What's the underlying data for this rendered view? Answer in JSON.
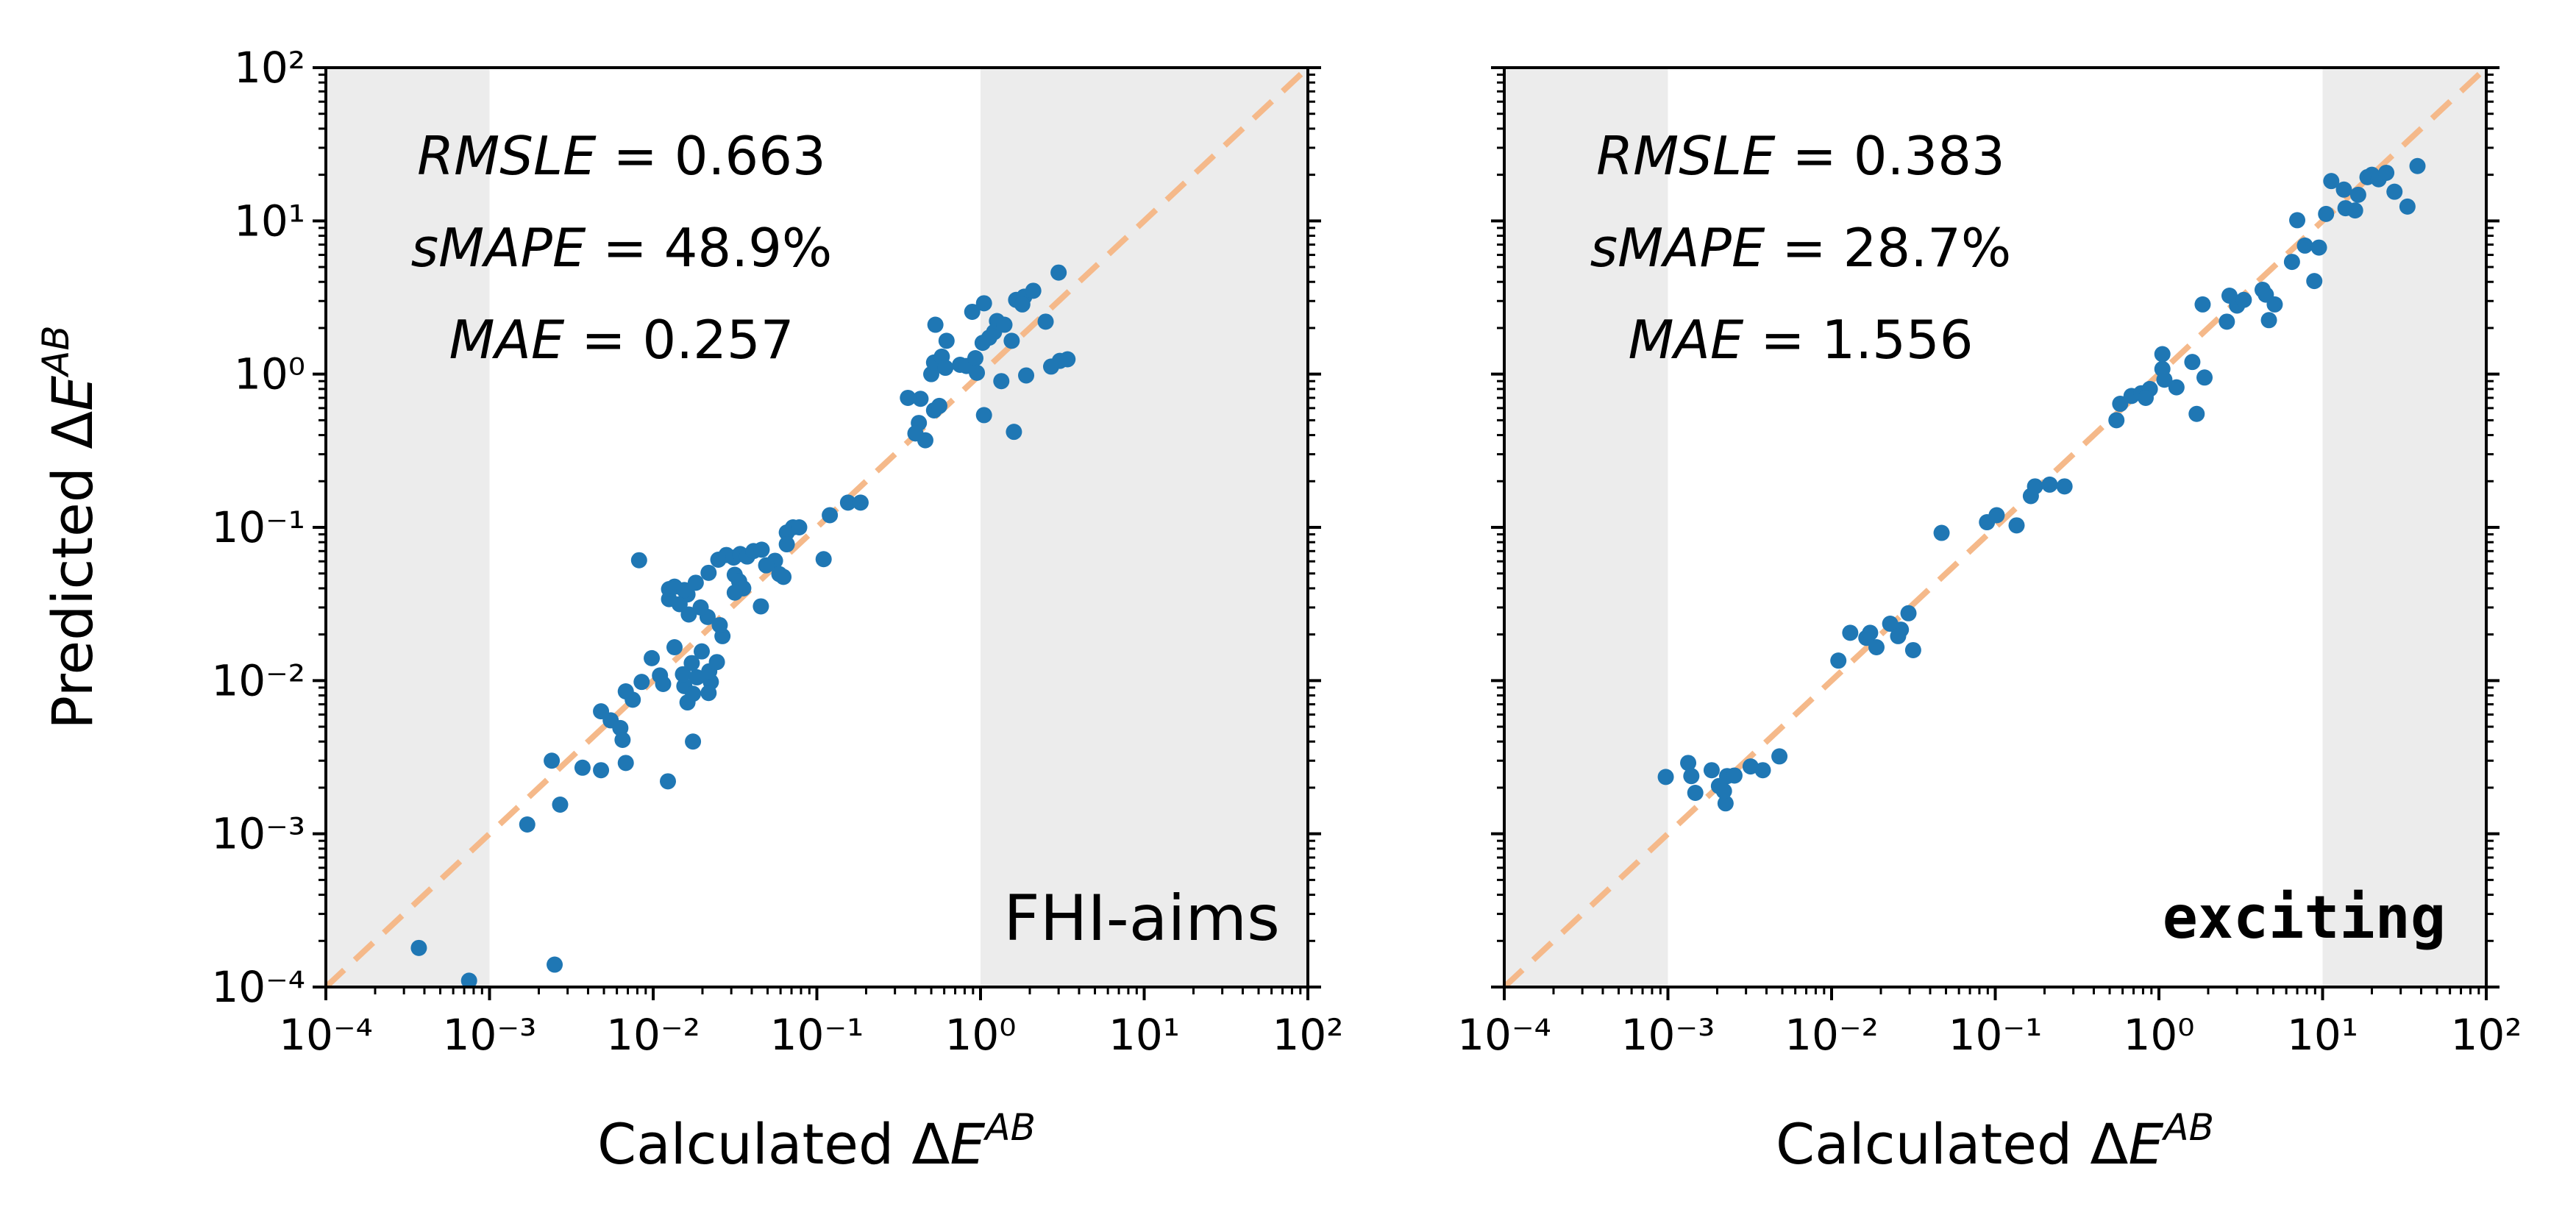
{
  "figure": {
    "ylabel": "Predicted ΔEᴬᴮ"
  },
  "colors": {
    "points": "#1f77b4",
    "diagonal": "#f5b98a",
    "shade": "#ececec",
    "axes": "#000000"
  },
  "chart_data": [
    {
      "type": "scatter",
      "title": "",
      "code_label": "FHI-aims",
      "xlabel": "Calculated ΔEᴬᴮ",
      "ylabel": "Predicted ΔEᴬᴮ",
      "xscale": "log",
      "yscale": "log",
      "xlim": [
        0.0001,
        100
      ],
      "ylim": [
        0.0001,
        100
      ],
      "tick_labels": [
        "10⁻⁴",
        "10⁻³",
        "10⁻²",
        "10⁻¹",
        "10⁰",
        "10¹",
        "10²"
      ],
      "shaded_x_ranges": [
        [
          0.0001,
          0.001
        ],
        [
          1,
          100
        ]
      ],
      "diagonal": "y = x (dashed)",
      "metrics": [
        {
          "name": "RMSLE",
          "value": "0.663"
        },
        {
          "name": "sMAPE",
          "value": "48.9%"
        },
        {
          "name": "MAE",
          "value": "0.257"
        }
      ],
      "points": [
        [
          0.00037,
          0.00018
        ],
        [
          0.00075,
          0.00011
        ],
        [
          0.0025,
          0.00014
        ],
        [
          0.0017,
          0.00115
        ],
        [
          0.0027,
          0.00155
        ],
        [
          0.0024,
          0.003
        ],
        [
          0.0037,
          0.0027
        ],
        [
          0.0048,
          0.0026
        ],
        [
          0.0068,
          0.0029
        ],
        [
          0.0055,
          0.0055
        ],
        [
          0.0063,
          0.0049
        ],
        [
          0.0065,
          0.0041
        ],
        [
          0.0048,
          0.0063
        ],
        [
          0.0075,
          0.0075
        ],
        [
          0.0068,
          0.0085
        ],
        [
          0.0085,
          0.0098
        ],
        [
          0.0098,
          0.014
        ],
        [
          0.011,
          0.0108
        ],
        [
          0.0115,
          0.0095
        ],
        [
          0.0123,
          0.0022
        ],
        [
          0.0155,
          0.0092
        ],
        [
          0.0152,
          0.011
        ],
        [
          0.0172,
          0.013
        ],
        [
          0.0185,
          0.0105
        ],
        [
          0.0175,
          0.0082
        ],
        [
          0.0162,
          0.0072
        ],
        [
          0.0175,
          0.004
        ],
        [
          0.0135,
          0.0165
        ],
        [
          0.0198,
          0.0155
        ],
        [
          0.0225,
          0.0098
        ],
        [
          0.0218,
          0.0083
        ],
        [
          0.022,
          0.0115
        ],
        [
          0.0245,
          0.0132
        ],
        [
          0.0265,
          0.0195
        ],
        [
          0.0255,
          0.023
        ],
        [
          0.0215,
          0.026
        ],
        [
          0.0195,
          0.03
        ],
        [
          0.0165,
          0.027
        ],
        [
          0.0145,
          0.0315
        ],
        [
          0.0162,
          0.0365
        ],
        [
          0.0125,
          0.034
        ],
        [
          0.0125,
          0.0395
        ],
        [
          0.0135,
          0.041
        ],
        [
          0.0155,
          0.039
        ],
        [
          0.0182,
          0.0435
        ],
        [
          0.0218,
          0.0505
        ],
        [
          0.025,
          0.0615
        ],
        [
          0.028,
          0.066
        ],
        [
          0.031,
          0.0635
        ],
        [
          0.034,
          0.067
        ],
        [
          0.0375,
          0.0645
        ],
        [
          0.041,
          0.07
        ],
        [
          0.046,
          0.0715
        ],
        [
          0.0315,
          0.049
        ],
        [
          0.0335,
          0.0445
        ],
        [
          0.0355,
          0.04
        ],
        [
          0.0315,
          0.0375
        ],
        [
          0.0455,
          0.0305
        ],
        [
          0.0555,
          0.0605
        ],
        [
          0.0655,
          0.0925
        ],
        [
          0.0715,
          0.1
        ],
        [
          0.078,
          0.1
        ],
        [
          0.0655,
          0.0775
        ],
        [
          0.059,
          0.0495
        ],
        [
          0.0625,
          0.0475
        ],
        [
          0.049,
          0.0565
        ],
        [
          0.11,
          0.062
        ],
        [
          0.12,
          0.12
        ],
        [
          0.155,
          0.145
        ],
        [
          0.185,
          0.145
        ],
        [
          0.0082,
          0.061
        ],
        [
          0.42,
          0.48
        ],
        [
          0.46,
          0.37
        ],
        [
          0.43,
          0.69
        ],
        [
          0.5,
          1.0
        ],
        [
          0.52,
          0.58
        ],
        [
          0.56,
          0.62
        ],
        [
          0.52,
          1.19
        ],
        [
          0.53,
          2.1
        ],
        [
          0.62,
          1.65
        ],
        [
          0.58,
          1.3
        ],
        [
          0.61,
          1.1
        ],
        [
          0.75,
          1.15
        ],
        [
          0.82,
          1.13
        ],
        [
          0.93,
          1.27
        ],
        [
          0.89,
          2.55
        ],
        [
          1.05,
          2.9
        ],
        [
          1.03,
          1.6
        ],
        [
          1.13,
          1.73
        ],
        [
          1.21,
          1.88
        ],
        [
          1.26,
          2.22
        ],
        [
          1.4,
          2.1
        ],
        [
          1.55,
          1.65
        ],
        [
          1.65,
          3.05
        ],
        [
          1.85,
          3.2
        ],
        [
          2.1,
          3.5
        ],
        [
          1.8,
          2.85
        ],
        [
          1.05,
          0.54
        ],
        [
          0.95,
          1.02
        ],
        [
          1.34,
          0.9
        ],
        [
          1.6,
          0.42
        ],
        [
          1.9,
          0.98
        ],
        [
          2.5,
          2.2
        ],
        [
          3.0,
          4.6
        ],
        [
          3.05,
          1.22
        ],
        [
          3.4,
          1.25
        ],
        [
          2.7,
          1.12
        ],
        [
          0.36,
          0.7
        ],
        [
          0.4,
          0.41
        ]
      ]
    },
    {
      "type": "scatter",
      "title": "",
      "code_label": "exciting",
      "xlabel": "Calculated ΔEᴬᴮ",
      "ylabel": "",
      "xscale": "log",
      "yscale": "log",
      "xlim": [
        0.0001,
        100
      ],
      "ylim": [
        0.0001,
        100
      ],
      "tick_labels": [
        "10⁻⁴",
        "10⁻³",
        "10⁻²",
        "10⁻¹",
        "10⁰",
        "10¹",
        "10²"
      ],
      "shaded_x_ranges": [
        [
          0.0001,
          0.001
        ],
        [
          10,
          100
        ]
      ],
      "diagonal": "y = x (dashed)",
      "metrics": [
        {
          "name": "RMSLE",
          "value": "0.383"
        },
        {
          "name": "sMAPE",
          "value": "28.7%"
        },
        {
          "name": "MAE",
          "value": "1.556"
        }
      ],
      "points": [
        [
          0.00097,
          0.00235
        ],
        [
          0.00133,
          0.0029
        ],
        [
          0.00139,
          0.00238
        ],
        [
          0.00147,
          0.00185
        ],
        [
          0.00185,
          0.0026
        ],
        [
          0.00205,
          0.00205
        ],
        [
          0.00225,
          0.00158
        ],
        [
          0.0023,
          0.00238
        ],
        [
          0.00255,
          0.0024
        ],
        [
          0.0032,
          0.00275
        ],
        [
          0.0038,
          0.0026
        ],
        [
          0.0048,
          0.0032
        ],
        [
          0.0022,
          0.0019
        ],
        [
          0.011,
          0.0135
        ],
        [
          0.013,
          0.0205
        ],
        [
          0.0163,
          0.019
        ],
        [
          0.0188,
          0.0165
        ],
        [
          0.0228,
          0.0235
        ],
        [
          0.0265,
          0.0215
        ],
        [
          0.0295,
          0.0275
        ],
        [
          0.0315,
          0.0158
        ],
        [
          0.0172,
          0.0205
        ],
        [
          0.0255,
          0.0195
        ],
        [
          0.047,
          0.092
        ],
        [
          0.089,
          0.108
        ],
        [
          0.102,
          0.12
        ],
        [
          0.135,
          0.103
        ],
        [
          0.165,
          0.16
        ],
        [
          0.175,
          0.185
        ],
        [
          0.215,
          0.19
        ],
        [
          0.265,
          0.185
        ],
        [
          0.55,
          0.5
        ],
        [
          0.58,
          0.64
        ],
        [
          0.68,
          0.72
        ],
        [
          0.78,
          0.75
        ],
        [
          0.88,
          0.8
        ],
        [
          0.83,
          0.7
        ],
        [
          1.08,
          0.92
        ],
        [
          1.05,
          1.08
        ],
        [
          1.05,
          1.35
        ],
        [
          1.28,
          0.82
        ],
        [
          1.6,
          1.2
        ],
        [
          1.7,
          0.55
        ],
        [
          1.9,
          0.95
        ],
        [
          1.85,
          2.85
        ],
        [
          2.6,
          2.2
        ],
        [
          2.7,
          3.25
        ],
        [
          3.0,
          2.8
        ],
        [
          3.3,
          3.05
        ],
        [
          4.3,
          3.55
        ],
        [
          4.5,
          3.3
        ],
        [
          4.7,
          2.25
        ],
        [
          5.1,
          2.85
        ],
        [
          6.5,
          5.4
        ],
        [
          7.0,
          10.1
        ],
        [
          7.8,
          6.9
        ],
        [
          8.9,
          4.05
        ],
        [
          9.5,
          6.7
        ],
        [
          10.5,
          11.1
        ],
        [
          11.3,
          18.2
        ],
        [
          13.5,
          16.0
        ],
        [
          13.8,
          12.1
        ],
        [
          15.8,
          11.7
        ],
        [
          16.5,
          14.8
        ],
        [
          18.8,
          19.3
        ],
        [
          20.0,
          20.0
        ],
        [
          22.0,
          18.7
        ],
        [
          24.5,
          20.6
        ],
        [
          33.0,
          12.4
        ],
        [
          38.0,
          22.8
        ],
        [
          27.5,
          15.5
        ]
      ]
    }
  ]
}
